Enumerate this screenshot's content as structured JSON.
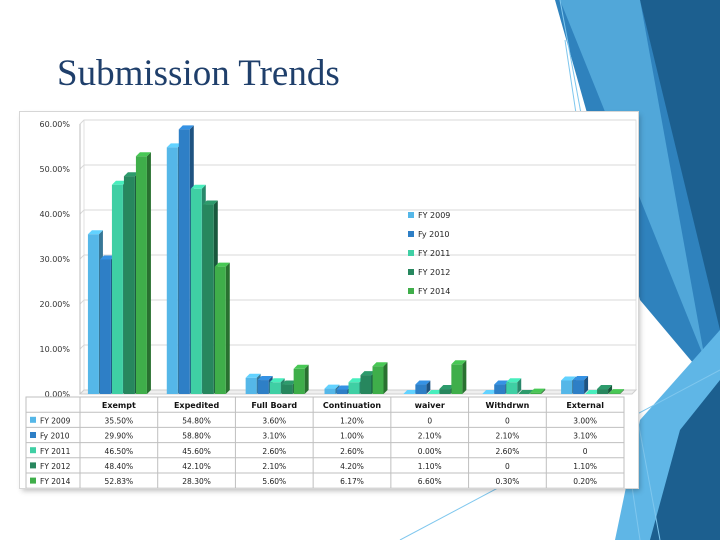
{
  "slide": {
    "title": "Submission Trends"
  },
  "colors": {
    "title": "#1f3f6b",
    "deco_dark": "#1c5f8f",
    "deco_mid": "#2f82bd",
    "deco_light": "#5fb6e6"
  },
  "chart_data": {
    "type": "bar",
    "title": "",
    "xlabel": "",
    "ylabel": "",
    "ylim": [
      0,
      60
    ],
    "y_ticks": [
      "0.00%",
      "10.00%",
      "20.00%",
      "30.00%",
      "40.00%",
      "50.00%",
      "60.00%"
    ],
    "grid": true,
    "legend_position": "right",
    "style": "3d-clustered-column-with-data-table",
    "categories": [
      "Exempt",
      "Expedited",
      "Full Board",
      "Continuation",
      "waiver",
      "Withdrwn",
      "External"
    ],
    "series": [
      {
        "name": "FY 2009",
        "color": "#55b7e8",
        "values": [
          35.5,
          54.8,
          3.6,
          1.2,
          0,
          0,
          3.0
        ],
        "labels": [
          "35.50%",
          "54.80%",
          "3.60%",
          "1.20%",
          "0",
          "0",
          "3.00%"
        ]
      },
      {
        "name": "Fy 2010",
        "color": "#2e7fc6",
        "values": [
          29.9,
          58.8,
          3.1,
          1.0,
          2.1,
          2.1,
          3.1
        ],
        "labels": [
          "29.90%",
          "58.80%",
          "3.10%",
          "1.00%",
          "2.10%",
          "2.10%",
          "3.10%"
        ]
      },
      {
        "name": "FY 2011",
        "color": "#3fcfa4",
        "values": [
          46.5,
          45.6,
          2.6,
          2.6,
          0.0,
          2.6,
          0
        ],
        "labels": [
          "46.50%",
          "45.60%",
          "2.60%",
          "2.60%",
          "0.00%",
          "2.60%",
          "0"
        ]
      },
      {
        "name": "FY 2012",
        "color": "#27875e",
        "values": [
          48.4,
          42.1,
          2.1,
          4.2,
          1.1,
          0,
          1.1
        ],
        "labels": [
          "48.40%",
          "42.10%",
          "2.10%",
          "4.20%",
          "1.10%",
          "0",
          "1.10%"
        ]
      },
      {
        "name": "FY 2014",
        "color": "#3fae4a",
        "values": [
          52.83,
          28.3,
          5.6,
          6.17,
          6.6,
          0.3,
          0.2
        ],
        "labels": [
          "52.83%",
          "28.30%",
          "5.60%",
          "6.17%",
          "6.60%",
          "0.30%",
          "0.20%"
        ]
      }
    ]
  }
}
